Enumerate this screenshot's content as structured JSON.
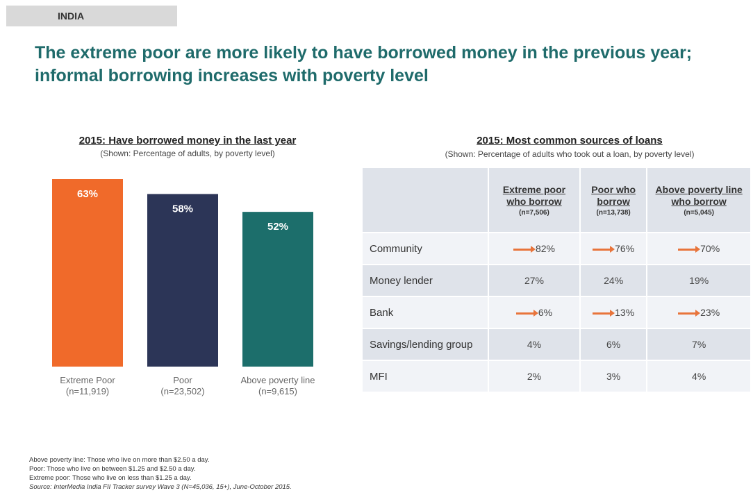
{
  "header": {
    "country": "INDIA"
  },
  "headline": "The extreme poor are more likely to have borrowed money in the previous year; informal borrowing increases with poverty level",
  "chart_data": {
    "type": "bar",
    "title": "2015: Have borrowed money in the last year",
    "subtitle": "(Shown: Percentage of adults, by poverty level)",
    "categories": [
      "Extreme Poor",
      "Poor",
      "Above poverty line"
    ],
    "category_ns": [
      "(n=11,919)",
      "(n=23,502)",
      "(n=9,615)"
    ],
    "values": [
      63,
      58,
      52
    ],
    "labels": [
      "63%",
      "58%",
      "52%"
    ],
    "colors": [
      "#f06a2a",
      "#2c3557",
      "#1c6e6b"
    ],
    "ylim": [
      0,
      63
    ],
    "grid": false
  },
  "loans_table": {
    "title": "2015: Most common sources of loans",
    "subtitle": "(Shown: Percentage of adults who took out a loan, by poverty level)",
    "columns": [
      {
        "label": "Extreme poor who borrow",
        "n": "(n=7,506)"
      },
      {
        "label": "Poor who borrow",
        "n": "(n=13,738)"
      },
      {
        "label": "Above poverty line who borrow",
        "n": "(n=5,045)"
      }
    ],
    "rows": [
      {
        "source": "Community",
        "values": [
          "82%",
          "76%",
          "70%"
        ],
        "arrows": true
      },
      {
        "source": "Money lender",
        "values": [
          "27%",
          "24%",
          "19%"
        ],
        "arrows": false
      },
      {
        "source": "Bank",
        "values": [
          "6%",
          "13%",
          "23%"
        ],
        "arrows": true
      },
      {
        "source": "Savings/lending group",
        "values": [
          "4%",
          "6%",
          "7%"
        ],
        "arrows": false
      },
      {
        "source": "MFI",
        "values": [
          "2%",
          "3%",
          "4%"
        ],
        "arrows": false
      }
    ],
    "arrow_color": "#e8743b"
  },
  "notes": {
    "above": "Above poverty line: Those who live on more than $2.50 a day.",
    "poor": "Poor: Those who live on between $1.25 and $2.50 a day.",
    "extreme": "Extreme poor: Those who live on less than $1.25 a day.",
    "source": "Source: InterMedia India FII Tracker survey Wave 3 (N=45,036, 15+), June-October 2015."
  }
}
